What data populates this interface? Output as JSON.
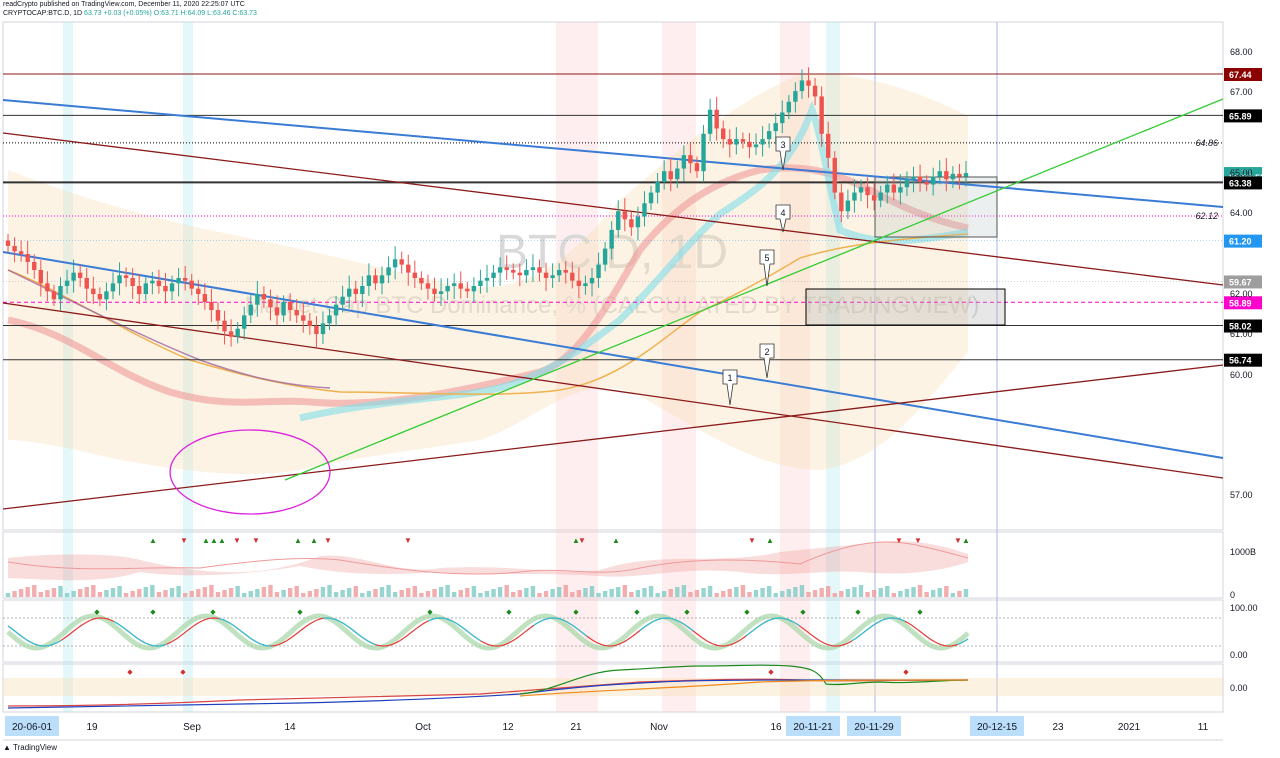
{
  "header": {
    "publisher_line": "readCrypto published on TradingView.com, December 11, 2020 22:25:07 UTC",
    "symbol_line": "CRYPTOCAP:BTC.D, 1D",
    "last": "63.73",
    "change": "+0.03 (+0.05%)",
    "open": "O:63.71",
    "high": "H:64.09",
    "low": "L:63.46",
    "close": "C:63.73"
  },
  "watermark": {
    "ticker": "BTC.D, 1D",
    "description": "Market Cap BTC Dominance, % (CALCULATED BY TRADINGVIEW)"
  },
  "colors": {
    "up": "#26a69a",
    "down": "#ef5350",
    "channel_blue": "#3a7bd5",
    "channel_red": "#8b1a1a",
    "support_green": "#33cc33",
    "circle": "#dd22dd",
    "label_dark": "#000000",
    "label_red": "#8b0000",
    "label_teal": "#26a69a",
    "label_pink": "#ff00cc",
    "label_gray": "#9e9e9e",
    "label_blue": "#2196f3"
  },
  "footer": {
    "brand": "TradingView"
  },
  "chart_data": {
    "type": "candlestick",
    "symbol": "CRYPTOCAP:BTC.D",
    "interval": "1D",
    "ylim": [
      56.5,
      68.4
    ],
    "y_ticks": [
      "68.00",
      "67.00",
      "65.00",
      "64.00",
      "62.00",
      "61.00",
      "60.00",
      "57.00"
    ],
    "x_ticks": [
      {
        "label": "20-06-01",
        "highlight": true
      },
      {
        "label": "19",
        "highlight": false
      },
      {
        "label": "Sep",
        "highlight": false
      },
      {
        "label": "14",
        "highlight": false
      },
      {
        "label": "Oct",
        "highlight": false
      },
      {
        "label": "12",
        "highlight": false
      },
      {
        "label": "21",
        "highlight": false
      },
      {
        "label": "Nov",
        "highlight": false
      },
      {
        "label": "16",
        "highlight": false
      },
      {
        "label": "20-11-21",
        "highlight": true
      },
      {
        "label": "20-11-29",
        "highlight": true
      },
      {
        "label": "20-12-15",
        "highlight": true
      },
      {
        "label": "23",
        "highlight": false
      },
      {
        "label": "2021",
        "highlight": false
      },
      {
        "label": "11",
        "highlight": false
      }
    ],
    "closes": [
      61.0,
      60.8,
      60.7,
      60.4,
      60.1,
      59.6,
      59.3,
      59.0,
      59.5,
      59.7,
      60.0,
      59.8,
      59.4,
      59.2,
      59.0,
      59.3,
      59.6,
      59.9,
      59.8,
      59.5,
      59.2,
      59.6,
      59.7,
      59.5,
      59.3,
      59.6,
      59.8,
      59.7,
      59.4,
      59.2,
      58.9,
      58.6,
      58.2,
      57.8,
      57.6,
      57.9,
      58.4,
      58.8,
      59.2,
      59.0,
      58.7,
      58.4,
      58.9,
      58.6,
      58.4,
      58.2,
      58.0,
      57.7,
      58.1,
      58.4,
      58.8,
      59.1,
      59.4,
      59.2,
      59.5,
      59.9,
      59.6,
      59.9,
      60.2,
      60.5,
      60.3,
      60.0,
      59.8,
      59.6,
      59.4,
      59.2,
      59.3,
      59.5,
      59.6,
      59.4,
      59.3,
      59.5,
      59.7,
      59.8,
      60.0,
      60.2,
      60.1,
      60.0,
      59.9,
      60.1,
      60.2,
      60.0,
      59.8,
      59.9,
      60.1,
      60.0,
      59.7,
      59.5,
      59.6,
      59.8,
      60.3,
      60.9,
      61.6,
      62.3,
      62.0,
      61.7,
      62.1,
      62.6,
      63.0,
      63.4,
      63.8,
      63.5,
      63.9,
      64.4,
      64.1,
      63.8,
      65.2,
      66.1,
      65.4,
      65.0,
      64.8,
      65.0,
      64.9,
      64.7,
      64.8,
      65.0,
      65.3,
      65.6,
      66.0,
      66.4,
      66.8,
      67.2,
      67.0,
      66.6,
      65.2,
      64.3,
      63.0,
      62.3,
      62.7,
      63.0,
      63.2,
      62.9,
      62.7,
      63.0,
      63.3,
      63.0,
      63.2,
      63.5,
      63.6,
      63.4,
      63.3,
      63.6,
      63.8,
      63.5,
      63.7,
      63.6,
      63.73
    ],
    "horizontal_levels": [
      {
        "value": 67.44,
        "label": "67.44",
        "style": "solid",
        "color_key": "label_red"
      },
      {
        "value": 65.89,
        "label": "65.89",
        "style": "solid",
        "color_key": "label_dark"
      },
      {
        "value": 64.86,
        "label": "64.86",
        "style": "dotted-label",
        "color_key": "label_dark"
      },
      {
        "value": 63.73,
        "label": "63.73",
        "style": "price",
        "color_key": "label_teal"
      },
      {
        "value": 63.59,
        "label": "01:34:55",
        "style": "countdown",
        "color_key": "label_teal"
      },
      {
        "value": 63.38,
        "label": "63.38",
        "style": "solid-thick",
        "color_key": "label_dark"
      },
      {
        "value": 62.12,
        "label": "62.12",
        "style": "dotted-label",
        "color_key": "label_pink"
      },
      {
        "value": 61.2,
        "label": "61.20",
        "style": "tag",
        "color_key": "label_blue"
      },
      {
        "value": 59.67,
        "label": "59.67",
        "style": "tag",
        "color_key": "label_gray"
      },
      {
        "value": 58.89,
        "label": "58.89",
        "style": "dashed",
        "color_key": "label_pink"
      },
      {
        "value": 58.02,
        "label": "58.02",
        "style": "solid",
        "color_key": "label_dark"
      },
      {
        "value": 56.74,
        "label": "56.74",
        "style": "solid",
        "color_key": "label_dark"
      }
    ],
    "callouts": [
      "1",
      "2",
      "3",
      "4",
      "5"
    ],
    "panels": {
      "volume": {
        "label_top": "1000B",
        "label_bottom": "0"
      },
      "stoch": {
        "labels": [
          "100.00",
          "0.00"
        ]
      },
      "obv": {
        "labels": [
          "0.00"
        ]
      }
    }
  }
}
